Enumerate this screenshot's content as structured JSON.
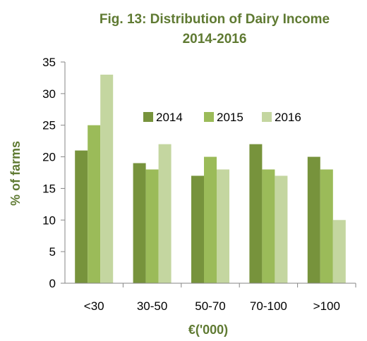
{
  "chart_data": {
    "type": "bar",
    "title": "Fig. 13: Distribution of Dairy Income",
    "subtitle": "2014-2016",
    "xlabel": "€('000)",
    "ylabel": "% of farms",
    "categories": [
      "<30",
      "30-50",
      "50-70",
      "70-100",
      ">100"
    ],
    "series": [
      {
        "name": "2014",
        "color": "#77933c",
        "values": [
          21,
          19,
          17,
          22,
          20
        ]
      },
      {
        "name": "2015",
        "color": "#9bbb59",
        "values": [
          25,
          18,
          20,
          18,
          18
        ]
      },
      {
        "name": "2016",
        "color": "#c4d6a0",
        "values": [
          33,
          22,
          18,
          17,
          10
        ]
      }
    ],
    "ylim": [
      0,
      35
    ],
    "yticks": [
      0,
      5,
      10,
      15,
      20,
      25,
      30,
      35
    ],
    "grid": false,
    "legend_position": "top-right"
  }
}
